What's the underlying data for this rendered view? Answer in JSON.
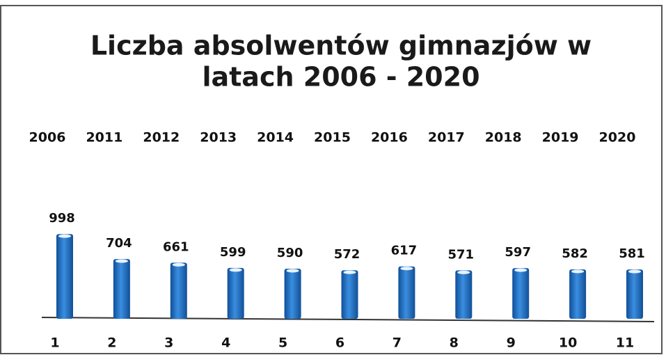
{
  "chart_data": {
    "type": "bar",
    "title": [
      "Liczba absolwentów gimnazjów w",
      "latach 2006 - 2020"
    ],
    "years": [
      "2006",
      "2011",
      "2012",
      "2013",
      "2014",
      "2015",
      "2016",
      "2017",
      "2018",
      "2019",
      "2020"
    ],
    "categories": [
      "1",
      "2",
      "3",
      "4",
      "5",
      "6",
      "7",
      "8",
      "9",
      "10",
      "11"
    ],
    "values": [
      998,
      704,
      661,
      599,
      590,
      572,
      617,
      571,
      597,
      582,
      581
    ],
    "color": "#2f7fd4"
  }
}
